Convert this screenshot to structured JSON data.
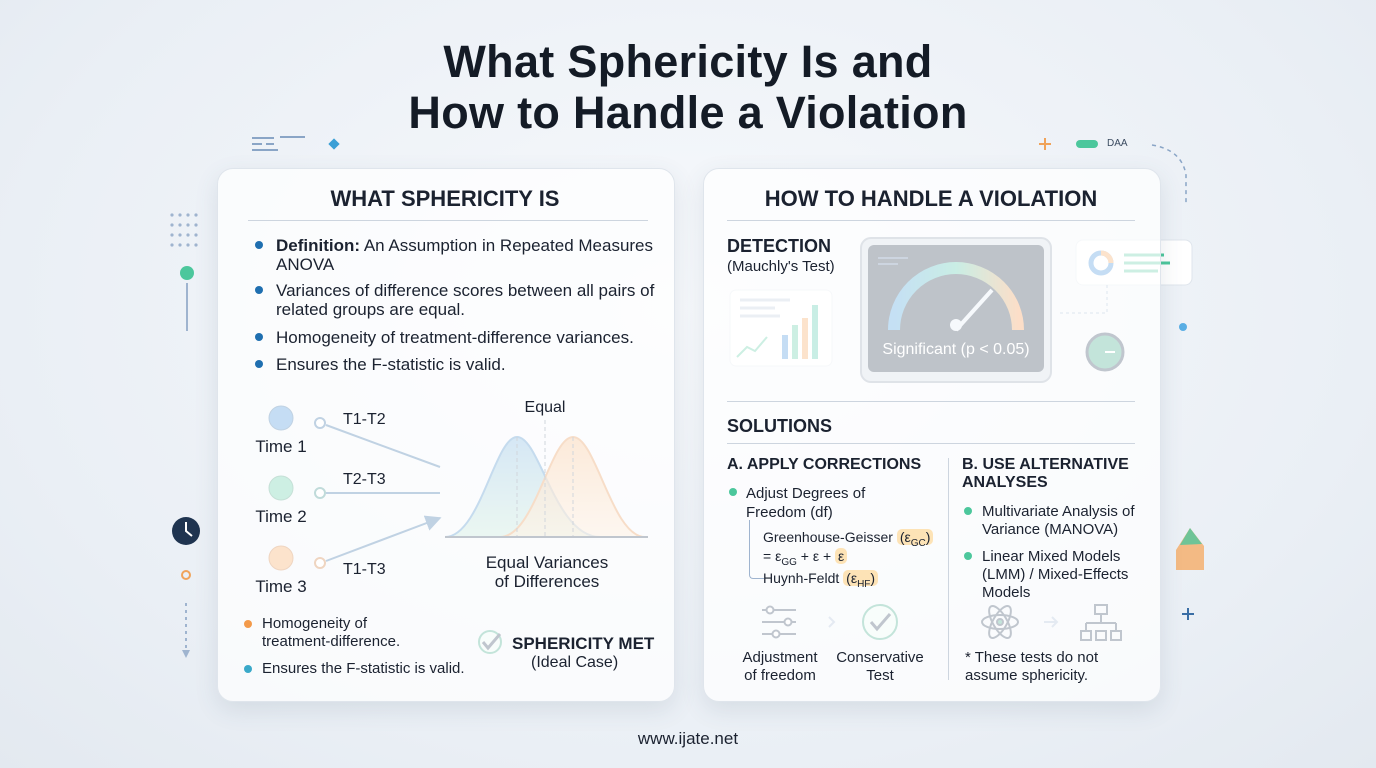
{
  "header": {
    "title_line1": "What Sphericity Is and",
    "title_line2": "How to Handle a Violation",
    "decor_label": "DAA"
  },
  "left_panel": {
    "heading": "WHAT SPHERICITY IS",
    "bullets": [
      {
        "bold": "Definition:",
        "text": "An Assumption in Repeated Measures ANOVA"
      },
      {
        "text": "Variances of difference scores between all pairs of related groups are equal."
      },
      {
        "text": "Homogeneity of treatment-difference variances."
      },
      {
        "text": "Ensures the F-statistic is valid."
      }
    ],
    "diagram": {
      "times": [
        "Time 1",
        "Time 2",
        "Time 3"
      ],
      "differences": [
        "T1-T2",
        "T2-T3",
        "T1-T3"
      ],
      "equal_label": "Equal",
      "caption_line1": "Equal Variances",
      "caption_line2": "of Differences"
    },
    "notes": [
      "Homogeneity of treatment-difference.",
      "Ensures the F-statistic is valid."
    ],
    "badge": {
      "title": "SPHERICITY MET",
      "subtitle": "(Ideal Case)"
    }
  },
  "right_panel": {
    "heading": "HOW TO HANDLE A VIOLATION",
    "detection": {
      "title": "DETECTION",
      "subtitle": "(Mauchly's Test)",
      "gauge_label": "Significant (p < 0.05)"
    },
    "solutions": {
      "title": "SOLUTIONS",
      "corrections": {
        "title": "A. APPLY CORRECTIONS",
        "bullet": "Adjust Degrees of Freedom (df)",
        "gg": {
          "name": "Greenhouse-Geisser",
          "symbol": "ε",
          "sub": "GC",
          "formula_pre": "= ε",
          "formula_sub": "GG",
          "formula_post": "+ ε +",
          "formula_last": "ε"
        },
        "hf": {
          "name": "Huynh-Feldt",
          "symbol": "ε",
          "sub": "HF"
        },
        "icons": [
          "Adjustment of freedom",
          "Conservative Test"
        ]
      },
      "alternatives": {
        "title": "B. USE ALTERNATIVE ANALYSES",
        "bullets": [
          "Multivariate Analysis of Variance (MANOVA)",
          "Linear Mixed Models (LMM) / Mixed-Effects Models"
        ],
        "note": "* These tests do not assume sphericity."
      }
    }
  },
  "footer": {
    "url": "www.ijate.net"
  }
}
